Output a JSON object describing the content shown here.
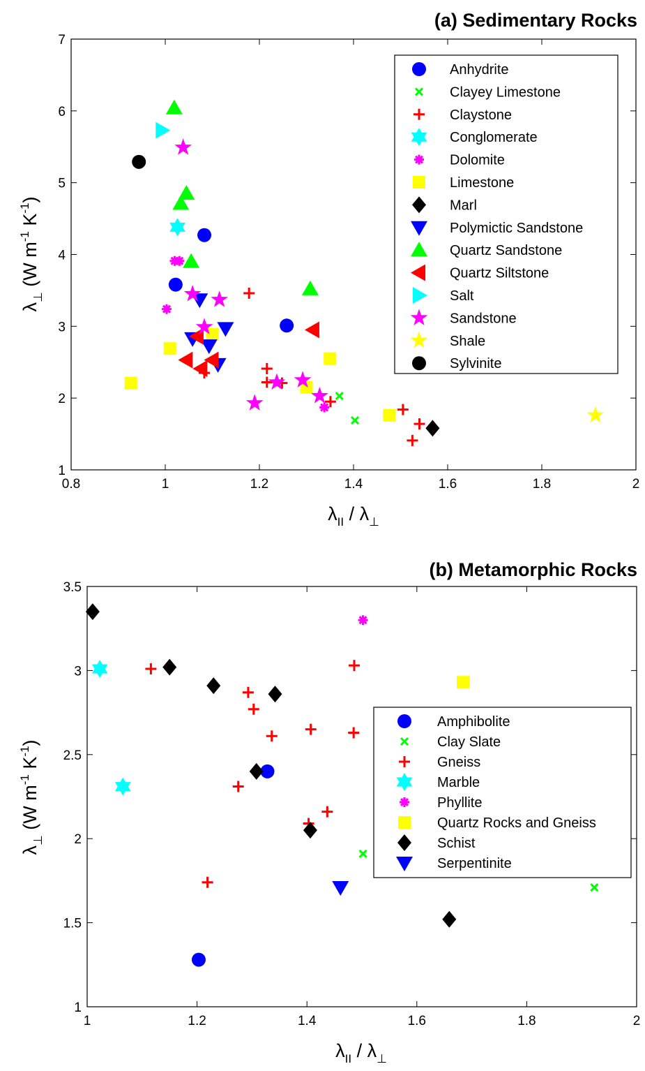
{
  "page": {
    "background": "#ffffff"
  },
  "marker_styles": {
    "circle": {
      "shape": "circle",
      "color": "#0000ff"
    },
    "x": {
      "shape": "x",
      "color": "#00ff00"
    },
    "plus": {
      "shape": "plus",
      "color": "#ff0000"
    },
    "hexagram": {
      "shape": "hexagram",
      "color": "#00ffff"
    },
    "asterisk": {
      "shape": "asterisk",
      "color": "#ff00ff"
    },
    "square": {
      "shape": "square",
      "color": "#ffff00"
    },
    "diamond": {
      "shape": "diamond",
      "color": "#000000"
    },
    "tri_down": {
      "shape": "triangle-down",
      "color": "#0000ff"
    },
    "tri_up": {
      "shape": "triangle-up",
      "color": "#00ff00"
    },
    "tri_left": {
      "shape": "triangle-left",
      "color": "#ff0000"
    },
    "tri_right": {
      "shape": "triangle-right",
      "color": "#00ffff"
    },
    "pentagram_m": {
      "shape": "pentagram",
      "color": "#ff00ff"
    },
    "pentagram_y": {
      "shape": "pentagram",
      "color": "#ffff00"
    },
    "circle_k": {
      "shape": "circle",
      "color": "#000000"
    }
  },
  "chart_data": [
    {
      "type": "scatter",
      "title": "(a) Sedimentary Rocks",
      "xlabel": "λ",
      "xlabel_sub1": "II",
      "xlabel_mid": " / λ",
      "xlabel_sub2": "⊥",
      "ylabel": "λ",
      "ylabel_sub": "⊥",
      "ylabel_units": " (W m",
      "ylabel_sup1": "-1",
      "ylabel_mid": " K",
      "ylabel_sup2": "-1",
      "ylabel_end": ")",
      "xlim": [
        0.8,
        2
      ],
      "ylim": [
        1,
        7
      ],
      "xticks": [
        0.8,
        1,
        1.2,
        1.4,
        1.6,
        1.8,
        2
      ],
      "xtick_labels": [
        "0.8",
        "1",
        "1.2",
        "1.4",
        "1.6",
        "1.8",
        "2"
      ],
      "yticks": [
        1,
        2,
        3,
        4,
        5,
        6,
        7
      ],
      "ytick_labels": [
        "1",
        "2",
        "3",
        "4",
        "5",
        "6",
        "7"
      ],
      "grid": false,
      "legend_position": "top-right",
      "series": [
        {
          "name": "Anhydrite",
          "marker": "circle",
          "points": [
            [
              1.083,
              4.27
            ],
            [
              1.022,
              3.58
            ],
            [
              1.258,
              3.01
            ]
          ]
        },
        {
          "name": "Clayey Limestone",
          "marker": "x",
          "points": [
            [
              1.37,
              2.03
            ],
            [
              1.403,
              1.69
            ]
          ]
        },
        {
          "name": "Claystone",
          "marker": "plus",
          "points": [
            [
              1.178,
              3.46
            ],
            [
              1.216,
              2.41
            ],
            [
              1.216,
              2.22
            ],
            [
              1.248,
              2.21
            ],
            [
              1.083,
              2.35
            ],
            [
              1.351,
              1.95
            ],
            [
              1.505,
              1.84
            ],
            [
              1.54,
              1.64
            ],
            [
              1.525,
              1.41
            ]
          ]
        },
        {
          "name": "Conglomerate",
          "marker": "hexagram",
          "points": [
            [
              1.026,
              4.38
            ]
          ]
        },
        {
          "name": "Dolomite",
          "marker": "asterisk",
          "points": [
            [
              1.02,
              3.91
            ],
            [
              1.03,
              3.91
            ],
            [
              1.003,
              3.24
            ],
            [
              1.338,
              1.87
            ]
          ]
        },
        {
          "name": "Limestone",
          "marker": "square",
          "points": [
            [
              0.927,
              2.21
            ],
            [
              1.01,
              2.69
            ],
            [
              1.1,
              2.89
            ],
            [
              1.35,
              2.55
            ],
            [
              1.3,
              2.15
            ],
            [
              1.476,
              1.76
            ]
          ]
        },
        {
          "name": "Marl",
          "marker": "diamond",
          "points": [
            [
              1.568,
              1.58
            ]
          ]
        },
        {
          "name": "Polymictic Sandstone",
          "marker": "tri_down",
          "points": [
            [
              1.073,
              3.37
            ],
            [
              1.058,
              2.83
            ],
            [
              1.093,
              2.73
            ],
            [
              1.128,
              2.97
            ],
            [
              1.112,
              2.47
            ]
          ]
        },
        {
          "name": "Quartz Sandstone",
          "marker": "tri_up",
          "points": [
            [
              1.019,
              6.04
            ],
            [
              1.045,
              4.85
            ],
            [
              1.033,
              4.71
            ],
            [
              1.055,
              3.9
            ],
            [
              1.308,
              3.52
            ]
          ]
        },
        {
          "name": "Quartz Siltstone",
          "marker": "tri_left",
          "points": [
            [
              1.314,
              2.95
            ],
            [
              1.068,
              2.86
            ],
            [
              1.045,
              2.53
            ],
            [
              1.1,
              2.53
            ],
            [
              1.076,
              2.41
            ]
          ]
        },
        {
          "name": "Salt",
          "marker": "tri_right",
          "points": [
            [
              0.993,
              5.73
            ]
          ]
        },
        {
          "name": "Sandstone",
          "marker": "pentagram_m",
          "points": [
            [
              1.038,
              5.49
            ],
            [
              1.058,
              3.45
            ],
            [
              1.115,
              3.37
            ],
            [
              1.083,
              2.99
            ],
            [
              1.237,
              2.22
            ],
            [
              1.292,
              2.25
            ],
            [
              1.328,
              2.03
            ],
            [
              1.19,
              1.93
            ]
          ]
        },
        {
          "name": "Shale",
          "marker": "pentagram_y",
          "points": [
            [
              1.914,
              1.76
            ]
          ]
        },
        {
          "name": "Sylvinite",
          "marker": "circle_k",
          "points": [
            [
              0.944,
              5.29
            ]
          ]
        }
      ]
    },
    {
      "type": "scatter",
      "title": "(b) Metamorphic Rocks",
      "xlabel": "λ",
      "xlabel_sub1": "II",
      "xlabel_mid": " / λ",
      "xlabel_sub2": "⊥",
      "ylabel": "λ",
      "ylabel_sub": "⊥",
      "ylabel_units": " (W m",
      "ylabel_sup1": "-1",
      "ylabel_mid": " K",
      "ylabel_sup2": "-1",
      "ylabel_end": ")",
      "xlim": [
        1,
        2
      ],
      "ylim": [
        1,
        3.5
      ],
      "xticks": [
        1,
        1.2,
        1.4,
        1.6,
        1.8,
        2
      ],
      "xtick_labels": [
        "1",
        "1.2",
        "1.4",
        "1.6",
        "1.8",
        "2"
      ],
      "yticks": [
        1,
        1.5,
        2,
        2.5,
        3,
        3.5
      ],
      "ytick_labels": [
        "1",
        "1.5",
        "2",
        "2.5",
        "3",
        "3.5"
      ],
      "grid": false,
      "legend_position": "right",
      "series": [
        {
          "name": "Amphibolite",
          "marker": "circle",
          "points": [
            [
              1.328,
              2.4
            ],
            [
              1.203,
              1.28
            ]
          ]
        },
        {
          "name": "Clay Slate",
          "marker": "x",
          "points": [
            [
              1.502,
              1.91
            ],
            [
              1.923,
              1.71
            ]
          ]
        },
        {
          "name": "Gneiss",
          "marker": "plus",
          "points": [
            [
              1.116,
              3.01
            ],
            [
              1.293,
              2.87
            ],
            [
              1.303,
              2.77
            ],
            [
              1.336,
              2.61
            ],
            [
              1.275,
              2.31
            ],
            [
              1.407,
              2.65
            ],
            [
              1.485,
              2.63
            ],
            [
              1.486,
              3.03
            ],
            [
              1.437,
              2.16
            ],
            [
              1.403,
              2.09
            ],
            [
              1.219,
              1.74
            ]
          ]
        },
        {
          "name": "Marble",
          "marker": "hexagram",
          "points": [
            [
              1.023,
              3.01
            ],
            [
              1.065,
              2.31
            ]
          ]
        },
        {
          "name": "Phyllite",
          "marker": "asterisk",
          "points": [
            [
              1.502,
              3.3
            ]
          ]
        },
        {
          "name": "Quartz Rocks and Gneiss",
          "marker": "square",
          "points": [
            [
              1.684,
              2.93
            ]
          ]
        },
        {
          "name": "Schist",
          "marker": "diamond",
          "points": [
            [
              1.01,
              3.35
            ],
            [
              1.15,
              3.02
            ],
            [
              1.23,
              2.91
            ],
            [
              1.342,
              2.86
            ],
            [
              1.308,
              2.4
            ],
            [
              1.406,
              2.05
            ],
            [
              1.659,
              1.52
            ]
          ]
        },
        {
          "name": "Serpentinite",
          "marker": "tri_down",
          "points": [
            [
              1.461,
              1.71
            ]
          ]
        }
      ]
    }
  ]
}
